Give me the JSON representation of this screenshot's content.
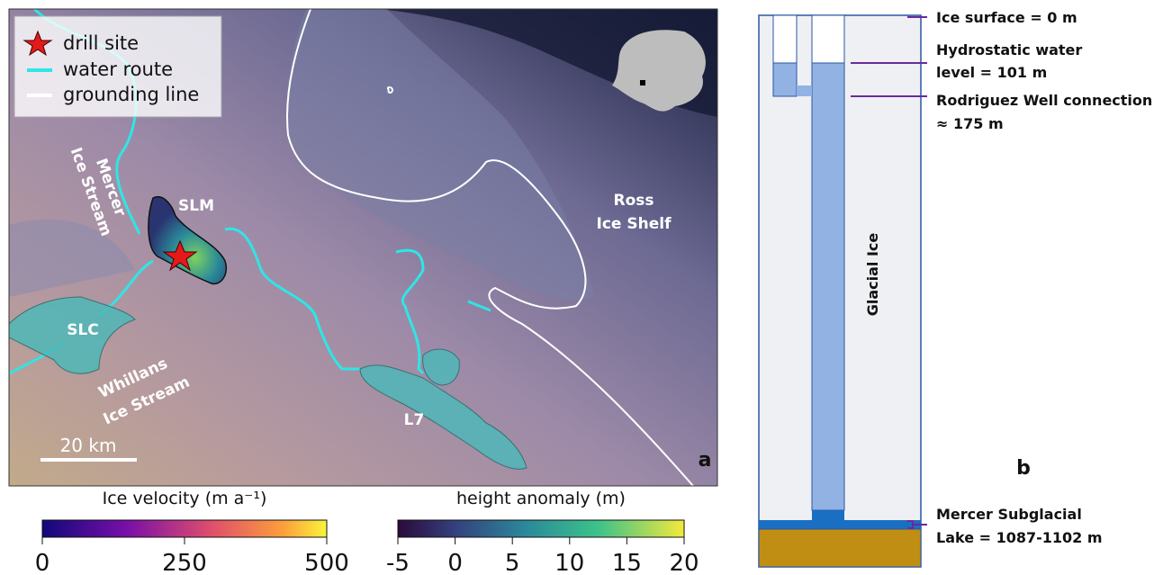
{
  "map": {
    "legend": [
      "drill site",
      "water route",
      "grounding line"
    ],
    "labels": {
      "mercer": [
        "Mercer",
        "Ice Stream"
      ],
      "slm": "SLM",
      "slc": "SLC",
      "whillans": [
        "Whillans",
        "Ice Stream"
      ],
      "l7": "L7",
      "ross": [
        "Ross",
        "Ice Shelf"
      ]
    },
    "scale_bar": "20 km",
    "panel": "a"
  },
  "colorbars": [
    {
      "title": "Ice velocity (m a⁻¹)",
      "lim": [
        0,
        500
      ],
      "ticks": [
        0,
        250,
        500
      ]
    },
    {
      "title": "height anomaly (m)",
      "lim": [
        -5,
        20
      ],
      "ticks": [
        -5,
        0,
        5,
        10,
        15,
        20
      ]
    }
  ],
  "diagram": {
    "ice_label": "Glacial Ice",
    "panel": "b",
    "annotations": [
      [
        "Ice surface = 0 m"
      ],
      [
        "Hydrostatic water",
        "level = 101 m"
      ],
      [
        "Rodriguez Well connection",
        "≈ 175 m"
      ],
      [
        "Mercer Subglacial",
        "Lake = 1087-1102 m"
      ]
    ]
  }
}
